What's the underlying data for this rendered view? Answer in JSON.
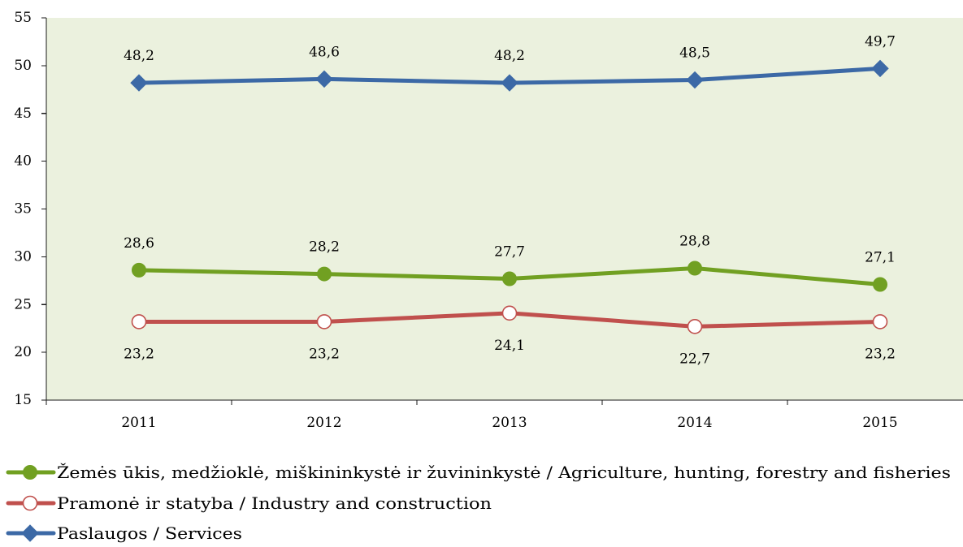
{
  "chart_data": {
    "type": "line",
    "categories": [
      "2011",
      "2012",
      "2013",
      "2014",
      "2015"
    ],
    "ylim": [
      15,
      55
    ],
    "y_ticks": [
      15,
      20,
      25,
      30,
      35,
      40,
      45,
      50,
      55
    ],
    "grid": false,
    "legend_position": "bottom",
    "plot_background": "#EBF1DE",
    "series": [
      {
        "name": "Žemės ūkis, medžioklė, miškininkystė ir žuvininkystė / Agriculture, hunting, forestry and fisheries",
        "values": [
          28.6,
          28.2,
          27.7,
          28.8,
          27.1
        ],
        "data_labels": [
          "28,6",
          "28,2",
          "27,7",
          "28,8",
          "27,1"
        ],
        "color": "#71A022",
        "marker": "filled-circle",
        "label_position": "above"
      },
      {
        "name": "Pramonė ir statyba / Industry and construction",
        "values": [
          23.2,
          23.2,
          24.1,
          22.7,
          23.2
        ],
        "data_labels": [
          "23,2",
          "23,2",
          "24,1",
          "22,7",
          "23,2"
        ],
        "color": "#C0504D",
        "marker": "hollow-circle",
        "label_position": "below"
      },
      {
        "name": "Paslaugos / Services",
        "values": [
          48.2,
          48.6,
          48.2,
          48.5,
          49.7
        ],
        "data_labels": [
          "48,2",
          "48,6",
          "48,2",
          "48,5",
          "49,7"
        ],
        "color": "#3C69A6",
        "marker": "diamond",
        "label_position": "above"
      }
    ]
  }
}
